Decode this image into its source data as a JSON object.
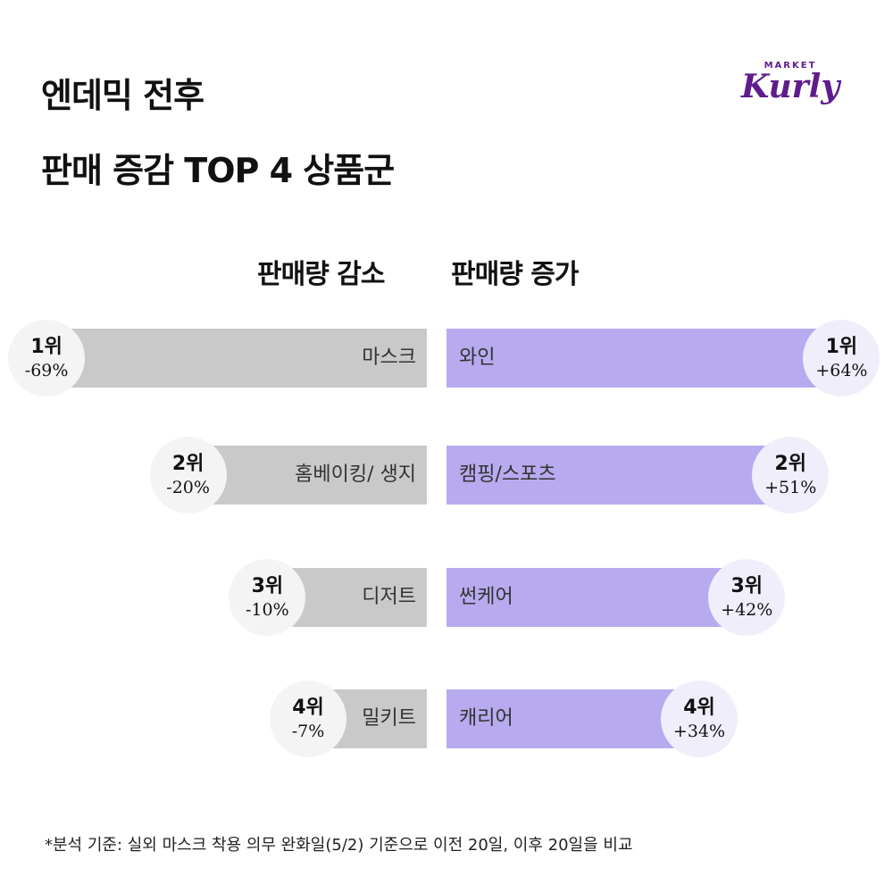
{
  "title": [
    "엔데믹 전후",
    "판매 증감 TOP 4 상품군"
  ],
  "logo": {
    "market": "MARKET",
    "kurly": "Kurly"
  },
  "chart_data": {
    "type": "bar",
    "title": "엔데믹 전후 판매 증감 TOP 4 상품군",
    "decrease": {
      "header": "판매량 감소",
      "items": [
        {
          "rank": "1위",
          "category": "마스크",
          "value": -69,
          "label": "-69%"
        },
        {
          "rank": "2위",
          "category": "홈베이킹/ 생지",
          "value": -20,
          "label": "-20%"
        },
        {
          "rank": "3위",
          "category": "디저트",
          "value": -10,
          "label": "-10%"
        },
        {
          "rank": "4위",
          "category": "밀키트",
          "value": -7,
          "label": "-7%"
        }
      ]
    },
    "increase": {
      "header": "판매량 증가",
      "items": [
        {
          "rank": "1위",
          "category": "와인",
          "value": 64,
          "label": "+64%"
        },
        {
          "rank": "2위",
          "category": "캠핑/스포츠",
          "value": 51,
          "label": "+51%"
        },
        {
          "rank": "3위",
          "category": "썬케어",
          "value": 42,
          "label": "+42%"
        },
        {
          "rank": "4위",
          "category": "캐리어",
          "value": 34,
          "label": "+34%"
        }
      ]
    }
  },
  "colors": {
    "decrease": "#c9c9c9",
    "increase": "#b8aaef"
  },
  "footnote": "*분석 기준:  실외 마스크 착용 의무 완화일(5/2) 기준으로 이전 20일, 이후 20일을 비교"
}
